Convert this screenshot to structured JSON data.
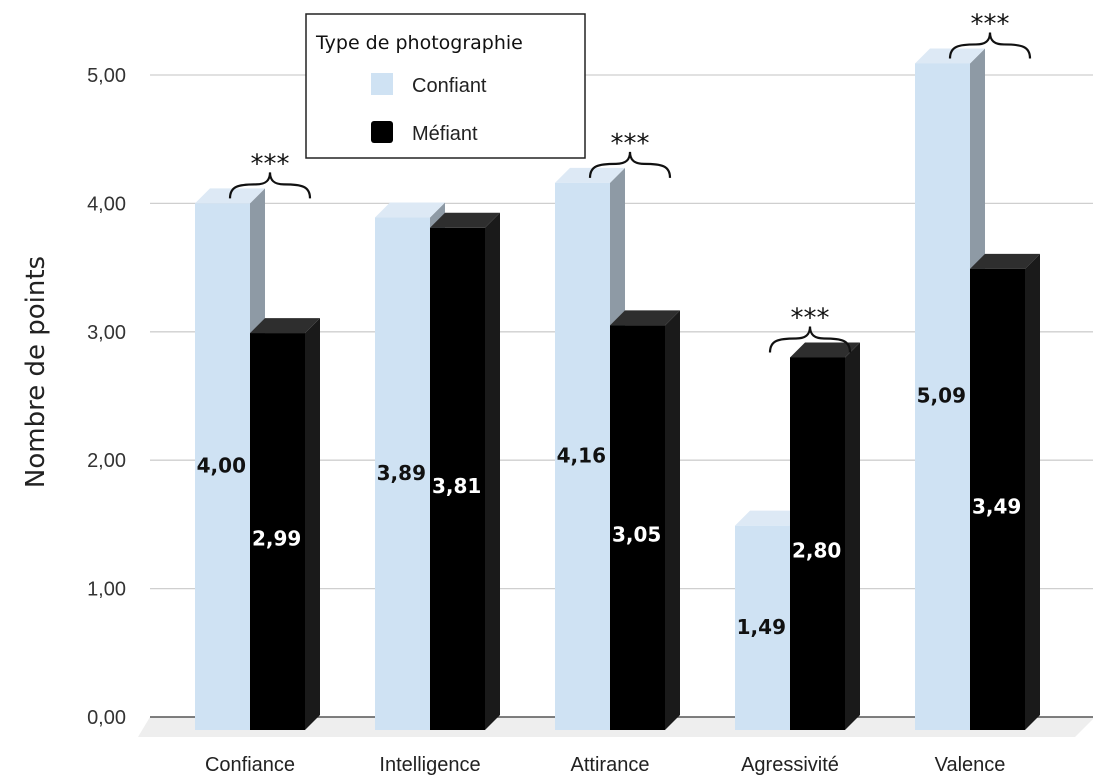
{
  "chart_data": {
    "type": "bar",
    "ylabel": "Nombre de points",
    "ylim": [
      0,
      5
    ],
    "yticks": [
      "0,00",
      "1,00",
      "2,00",
      "3,00",
      "4,00",
      "5,00"
    ],
    "grid": true,
    "categories": [
      "Confiance",
      "Intelligence",
      "Attirance",
      "Agressivité",
      "Valence"
    ],
    "series": [
      {
        "name": "Confiant",
        "color": "#cfe2f3",
        "values": [
          4.0,
          3.89,
          4.16,
          1.49,
          5.09
        ],
        "labels": [
          "4,00",
          "3,89",
          "4,16",
          "1,49",
          "5,09"
        ]
      },
      {
        "name": "Méfiant",
        "color": "#000000",
        "values": [
          2.99,
          3.81,
          3.05,
          2.8,
          3.49
        ],
        "labels": [
          "2,99",
          "3,81",
          "3,05",
          "2,80",
          "3,49"
        ]
      }
    ],
    "legend": {
      "title": "Type de photographie",
      "position": "top-center"
    },
    "annotations": [
      {
        "category": "Confiance",
        "text": "***"
      },
      {
        "category": "Attirance",
        "text": "***"
      },
      {
        "category": "Agressivité",
        "text": "***"
      },
      {
        "category": "Valence",
        "text": "***"
      }
    ]
  }
}
